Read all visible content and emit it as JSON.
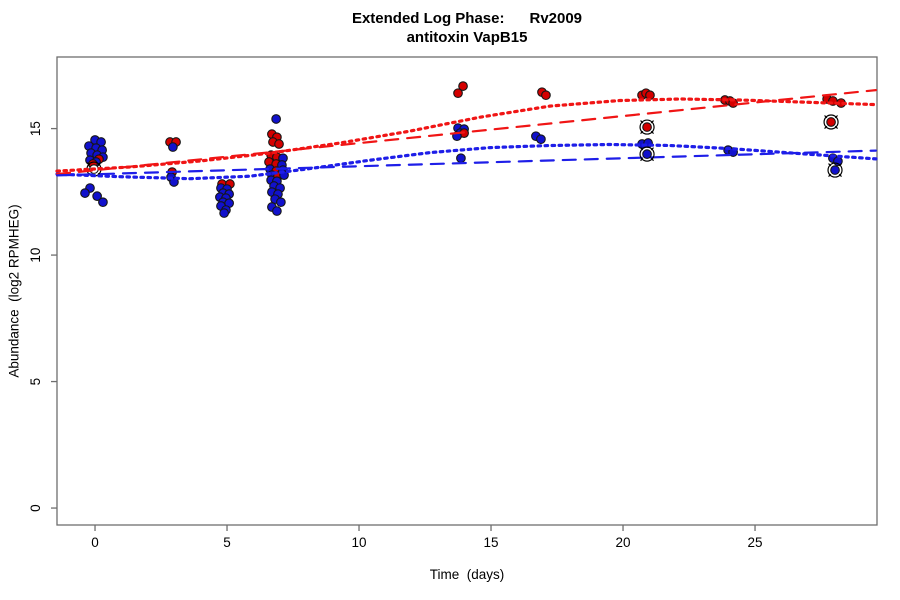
{
  "title": {
    "line1": "Extended Log Phase:      Rv2009",
    "line2": "antitoxin VapB15"
  },
  "axis": {
    "x_label": "Time  (days)",
    "y_label": "Abundance  (log2 RPMHEG)"
  },
  "colors": {
    "red_point": "#D40000",
    "blue_point": "#1111CC",
    "red_line": "#F01515",
    "blue_line": "#1E1EE8",
    "point_outline": "#151515",
    "ring": "#000000",
    "frame": "#6e6e6e",
    "text": "#000000",
    "open_fill": "#ffffff"
  },
  "chart_data": {
    "type": "scatter",
    "title": "Extended Log Phase: Rv2009 / antitoxin VapB15",
    "xlabel": "Time (days)",
    "ylabel": "Abundance (log2 RPMHEG)",
    "xlim": [
      -1.44,
      29.62
    ],
    "ylim": [
      -0.67,
      17.83
    ],
    "x_ticks": [
      0,
      5,
      10,
      15,
      20,
      25
    ],
    "y_ticks": [
      0,
      5,
      10,
      15
    ],
    "grid": false,
    "legend": "none",
    "points": [
      {
        "t": 0.0,
        "a": 14.55,
        "c": "blue"
      },
      {
        "t": 0.23,
        "a": 14.47,
        "c": "blue"
      },
      {
        "t": -0.23,
        "a": 14.31,
        "c": "blue"
      },
      {
        "t": 0.04,
        "a": 14.23,
        "c": "blue"
      },
      {
        "t": 0.27,
        "a": 14.15,
        "c": "blue"
      },
      {
        "t": -0.15,
        "a": 14.03,
        "c": "blue"
      },
      {
        "t": 0.08,
        "a": 13.95,
        "c": "blue"
      },
      {
        "t": 0.3,
        "a": 13.87,
        "c": "blue"
      },
      {
        "t": 0.15,
        "a": 13.79,
        "c": "red"
      },
      {
        "t": -0.19,
        "a": 13.75,
        "c": "blue"
      },
      {
        "t": 0.04,
        "a": 13.68,
        "c": "blue"
      },
      {
        "t": -0.08,
        "a": 13.6,
        "c": "red"
      },
      {
        "t": -0.04,
        "a": 13.4,
        "c": "open"
      },
      {
        "t": -0.19,
        "a": 12.65,
        "c": "blue"
      },
      {
        "t": -0.38,
        "a": 12.45,
        "c": "blue"
      },
      {
        "t": 0.08,
        "a": 12.33,
        "c": "blue"
      },
      {
        "t": 0.3,
        "a": 12.09,
        "c": "blue"
      },
      {
        "t": 2.84,
        "a": 14.47,
        "c": "red"
      },
      {
        "t": 3.07,
        "a": 14.47,
        "c": "red"
      },
      {
        "t": 2.95,
        "a": 14.27,
        "c": "blue"
      },
      {
        "t": 2.92,
        "a": 13.28,
        "c": "red"
      },
      {
        "t": 2.88,
        "a": 13.08,
        "c": "blue"
      },
      {
        "t": 2.99,
        "a": 12.89,
        "c": "blue"
      },
      {
        "t": 4.81,
        "a": 12.81,
        "c": "red"
      },
      {
        "t": 5.11,
        "a": 12.81,
        "c": "red"
      },
      {
        "t": 4.77,
        "a": 12.65,
        "c": "blue"
      },
      {
        "t": 5.0,
        "a": 12.61,
        "c": "blue"
      },
      {
        "t": 4.85,
        "a": 12.45,
        "c": "blue"
      },
      {
        "t": 5.08,
        "a": 12.41,
        "c": "blue"
      },
      {
        "t": 4.73,
        "a": 12.29,
        "c": "blue"
      },
      {
        "t": 4.96,
        "a": 12.25,
        "c": "blue"
      },
      {
        "t": 4.85,
        "a": 12.09,
        "c": "blue"
      },
      {
        "t": 5.08,
        "a": 12.05,
        "c": "blue"
      },
      {
        "t": 4.77,
        "a": 11.94,
        "c": "blue"
      },
      {
        "t": 4.96,
        "a": 11.78,
        "c": "blue"
      },
      {
        "t": 4.89,
        "a": 11.66,
        "c": "blue"
      },
      {
        "t": 6.86,
        "a": 15.38,
        "c": "blue"
      },
      {
        "t": 6.7,
        "a": 14.78,
        "c": "red"
      },
      {
        "t": 6.89,
        "a": 14.66,
        "c": "red"
      },
      {
        "t": 6.74,
        "a": 14.47,
        "c": "red"
      },
      {
        "t": 6.97,
        "a": 14.39,
        "c": "red"
      },
      {
        "t": 6.67,
        "a": 13.95,
        "c": "red"
      },
      {
        "t": 6.89,
        "a": 13.87,
        "c": "red"
      },
      {
        "t": 7.12,
        "a": 13.83,
        "c": "blue"
      },
      {
        "t": 6.59,
        "a": 13.68,
        "c": "red"
      },
      {
        "t": 6.86,
        "a": 13.6,
        "c": "red"
      },
      {
        "t": 7.08,
        "a": 13.56,
        "c": "blue"
      },
      {
        "t": 6.63,
        "a": 13.4,
        "c": "blue"
      },
      {
        "t": 6.86,
        "a": 13.32,
        "c": "red"
      },
      {
        "t": 7.12,
        "a": 13.36,
        "c": "blue"
      },
      {
        "t": 6.7,
        "a": 13.16,
        "c": "blue"
      },
      {
        "t": 6.93,
        "a": 13.12,
        "c": "red"
      },
      {
        "t": 7.16,
        "a": 13.16,
        "c": "blue"
      },
      {
        "t": 6.67,
        "a": 12.96,
        "c": "blue"
      },
      {
        "t": 6.89,
        "a": 12.92,
        "c": "blue"
      },
      {
        "t": 6.78,
        "a": 12.73,
        "c": "blue"
      },
      {
        "t": 7.01,
        "a": 12.65,
        "c": "blue"
      },
      {
        "t": 6.7,
        "a": 12.49,
        "c": "blue"
      },
      {
        "t": 6.93,
        "a": 12.41,
        "c": "blue"
      },
      {
        "t": 6.82,
        "a": 12.21,
        "c": "blue"
      },
      {
        "t": 7.04,
        "a": 12.09,
        "c": "blue"
      },
      {
        "t": 6.7,
        "a": 11.9,
        "c": "blue"
      },
      {
        "t": 6.89,
        "a": 11.74,
        "c": "blue"
      },
      {
        "t": 13.94,
        "a": 16.68,
        "c": "red"
      },
      {
        "t": 13.75,
        "a": 16.4,
        "c": "red"
      },
      {
        "t": 13.75,
        "a": 15.02,
        "c": "blue"
      },
      {
        "t": 13.98,
        "a": 14.98,
        "c": "blue"
      },
      {
        "t": 13.83,
        "a": 14.82,
        "c": "blue"
      },
      {
        "t": 13.98,
        "a": 14.82,
        "c": "red"
      },
      {
        "t": 13.71,
        "a": 14.7,
        "c": "blue"
      },
      {
        "t": 13.86,
        "a": 13.83,
        "c": "blue"
      },
      {
        "t": 16.93,
        "a": 16.44,
        "c": "red"
      },
      {
        "t": 17.08,
        "a": 16.32,
        "c": "red"
      },
      {
        "t": 16.7,
        "a": 14.7,
        "c": "blue"
      },
      {
        "t": 16.89,
        "a": 14.58,
        "c": "blue"
      },
      {
        "t": 20.72,
        "a": 16.32,
        "c": "red"
      },
      {
        "t": 20.87,
        "a": 16.4,
        "c": "red"
      },
      {
        "t": 21.02,
        "a": 16.32,
        "c": "red"
      },
      {
        "t": 20.72,
        "a": 14.39,
        "c": "blue"
      },
      {
        "t": 20.95,
        "a": 14.43,
        "c": "blue"
      },
      {
        "t": 20.91,
        "a": 15.06,
        "c": "red",
        "m": "circled"
      },
      {
        "t": 20.91,
        "a": 13.99,
        "c": "blue",
        "m": "circled"
      },
      {
        "t": 23.86,
        "a": 16.13,
        "c": "red"
      },
      {
        "t": 24.05,
        "a": 16.09,
        "c": "red"
      },
      {
        "t": 24.17,
        "a": 16.01,
        "c": "red"
      },
      {
        "t": 23.98,
        "a": 14.15,
        "c": "blue"
      },
      {
        "t": 24.17,
        "a": 14.07,
        "c": "blue"
      },
      {
        "t": 27.73,
        "a": 16.17,
        "c": "red"
      },
      {
        "t": 27.95,
        "a": 16.09,
        "c": "red"
      },
      {
        "t": 28.26,
        "a": 16.01,
        "c": "red"
      },
      {
        "t": 27.88,
        "a": 15.26,
        "c": "red",
        "m": "circled"
      },
      {
        "t": 27.95,
        "a": 13.83,
        "c": "blue"
      },
      {
        "t": 28.14,
        "a": 13.71,
        "c": "blue"
      },
      {
        "t": 28.03,
        "a": 13.36,
        "c": "blue",
        "m": "circled"
      }
    ],
    "trend_lines": [
      {
        "name": "red-smooth",
        "color": "red",
        "style": "dotted",
        "x": [
          -1.44,
          1.33,
          3.98,
          6.63,
          9.28,
          11.93,
          14.58,
          17.23,
          19.89,
          22.16,
          24.43,
          26.7,
          29.58
        ],
        "y": [
          13.32,
          13.48,
          13.72,
          14.03,
          14.43,
          14.9,
          15.45,
          15.89,
          16.11,
          16.17,
          16.13,
          16.05,
          15.95
        ]
      },
      {
        "name": "blue-smooth",
        "color": "blue",
        "style": "dotted",
        "x": [
          -1.44,
          0.95,
          3.6,
          5.87,
          8.14,
          10.42,
          12.69,
          14.96,
          17.23,
          19.51,
          21.78,
          24.05,
          26.7,
          29.58
        ],
        "y": [
          13.2,
          13.1,
          13.02,
          13.12,
          13.42,
          13.75,
          14.05,
          14.25,
          14.33,
          14.37,
          14.33,
          14.21,
          14.01,
          13.8
        ]
      },
      {
        "name": "red-linear",
        "color": "red",
        "style": "dashed",
        "x": [
          -1.44,
          29.58
        ],
        "y": [
          13.2,
          16.52
        ]
      },
      {
        "name": "blue-linear",
        "color": "blue",
        "style": "dashed",
        "x": [
          -1.44,
          29.58
        ],
        "y": [
          13.15,
          14.13
        ]
      }
    ]
  }
}
